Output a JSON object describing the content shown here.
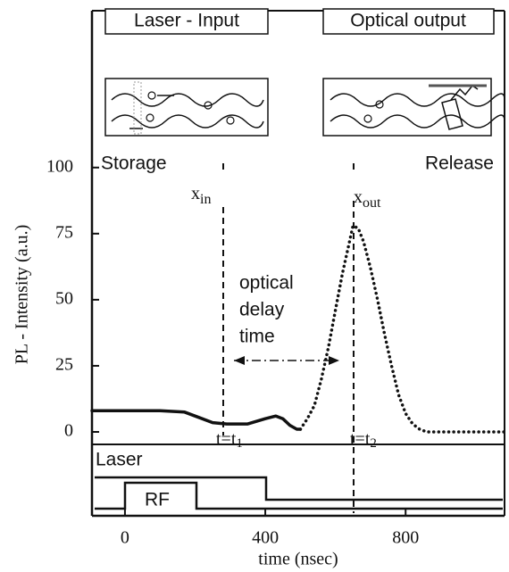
{
  "chart_data": {
    "type": "line",
    "xlabel": "time (nsec)",
    "ylabel": "PL - Intensity (a.u.)",
    "xlim": [
      -94,
      1082
    ],
    "ylim": [
      0,
      160
    ],
    "xticks": [
      0,
      400,
      800
    ],
    "yticks": [
      0,
      25,
      50,
      75,
      100
    ],
    "series": [
      {
        "color": "#111111",
        "dash": "solid",
        "x": [
          -94,
          0,
          100,
          170,
          210,
          250,
          290,
          350,
          400,
          430,
          450,
          470,
          490,
          500
        ],
        "values": [
          8,
          8,
          8,
          7.5,
          5.5,
          3.5,
          3,
          3,
          5,
          6,
          5,
          2.5,
          1,
          1
        ]
      },
      {
        "color": "#111111",
        "dash": "dotted",
        "x": [
          500,
          520,
          540,
          560,
          580,
          600,
          620,
          640,
          650,
          665,
          680,
          700,
          720,
          740,
          760,
          780,
          800,
          820,
          840,
          860,
          900,
          1000,
          1082
        ],
        "values": [
          1,
          5,
          10,
          20,
          32,
          46,
          60,
          72,
          78,
          77,
          72,
          62,
          50,
          37,
          25,
          14,
          7,
          3,
          1,
          0,
          0,
          0,
          0
        ]
      }
    ],
    "annotations": {
      "laser_input": "Laser - Input",
      "optical_output": "Optical output",
      "storage": "Storage",
      "release": "Release",
      "x_in": {
        "base": "x",
        "sub": "in"
      },
      "x_out": {
        "base": "x",
        "sub": "out"
      },
      "delay": [
        "optical",
        "delay",
        "time"
      ],
      "t1": {
        "base": "t=t",
        "sub": "1"
      },
      "t2": {
        "base": "t=t",
        "sub": "2"
      },
      "laser": "Laser",
      "rf": "RF"
    }
  }
}
